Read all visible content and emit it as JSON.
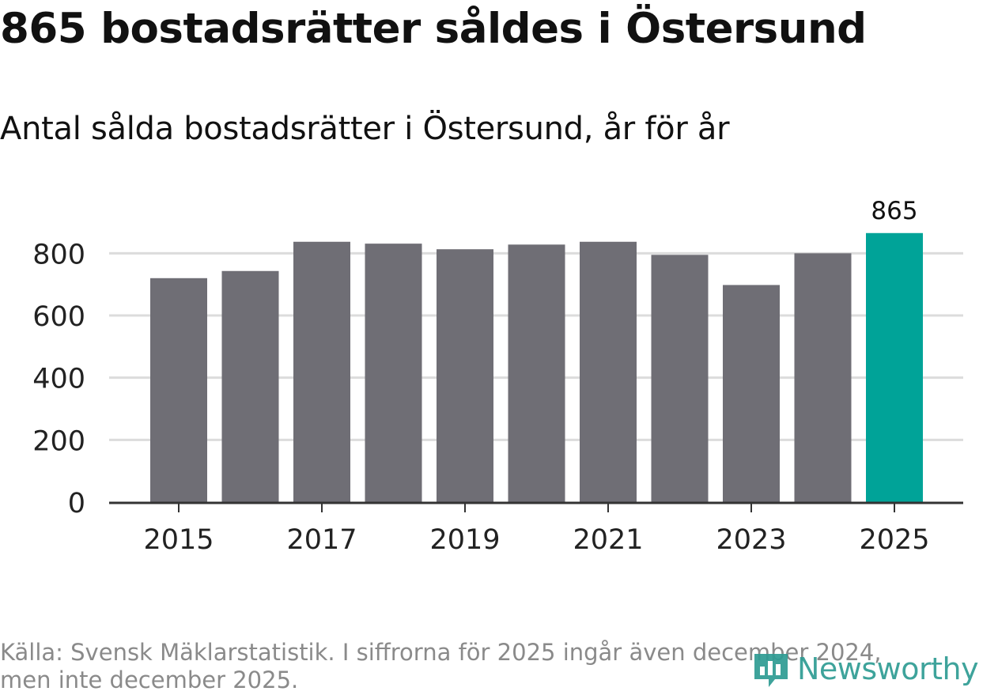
{
  "header": {
    "title": "865 bostadsrätter såldes i Östersund",
    "subtitle": "Antal sålda bostadsrätter i Östersund, år för år"
  },
  "chart_data": {
    "type": "bar",
    "title": "865 bostadsrätter såldes i Östersund",
    "subtitle": "Antal sålda bostadsrätter i Östersund, år för år",
    "categories": [
      "2015",
      "2016",
      "2017",
      "2018",
      "2019",
      "2020",
      "2021",
      "2022",
      "2023",
      "2024",
      "2025"
    ],
    "values": [
      720,
      743,
      837,
      831,
      813,
      828,
      837,
      795,
      698,
      800,
      865
    ],
    "highlight_index": 10,
    "highlight_label": "865",
    "xticks": [
      "2015",
      "2017",
      "2019",
      "2021",
      "2023",
      "2025"
    ],
    "yticks": [
      0,
      200,
      400,
      600,
      800
    ],
    "ylim": [
      0,
      900
    ],
    "xlabel": "",
    "ylabel": "",
    "grid": true,
    "colors": {
      "bar": "#6f6e75",
      "highlight": "#00a398",
      "grid": "#dcdcdc",
      "axis": "#333333",
      "text": "#222222"
    }
  },
  "footer": {
    "source_line1": "Källa: Svensk Mäklarstatistik. I siffrorna för 2025 ingår även december 2024,",
    "source_line2": "men inte december 2025."
  },
  "logo": {
    "text": "Newsworthy",
    "icon": "newsworthy-chart-icon",
    "color": "#2e9c93"
  }
}
